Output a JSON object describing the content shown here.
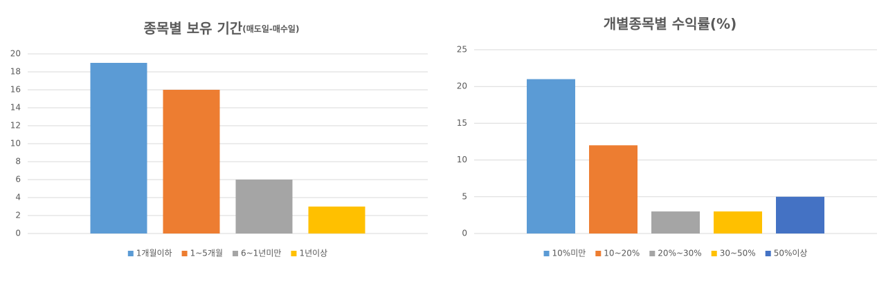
{
  "chart_data": [
    {
      "type": "bar",
      "title": "종목별 보유 기간",
      "subtitle": "(매도일-매수일)",
      "ylim": [
        0,
        20
      ],
      "yticks": [
        0,
        2,
        4,
        6,
        8,
        10,
        12,
        14,
        16,
        18,
        20
      ],
      "grid": true,
      "series": [
        {
          "name": "1개월이하",
          "color": "#5b9bd5",
          "values": [
            19
          ]
        },
        {
          "name": "1~5개월",
          "color": "#ed7d31",
          "values": [
            16
          ]
        },
        {
          "name": "6~1년미만",
          "color": "#a5a5a5",
          "values": [
            6
          ]
        },
        {
          "name": "1년이상",
          "color": "#ffc000",
          "values": [
            3
          ]
        }
      ]
    },
    {
      "type": "bar",
      "title": "개별종목별 수익률(%)",
      "ylim": [
        0,
        25
      ],
      "yticks": [
        0,
        5,
        10,
        15,
        20,
        25
      ],
      "grid": true,
      "series": [
        {
          "name": "10%미만",
          "color": "#5b9bd5",
          "values": [
            21
          ]
        },
        {
          "name": "10~20%",
          "color": "#ed7d31",
          "values": [
            12
          ]
        },
        {
          "name": "20%~30%",
          "color": "#a5a5a5",
          "values": [
            3
          ]
        },
        {
          "name": "30~50%",
          "color": "#ffc000",
          "values": [
            3
          ]
        },
        {
          "name": "50%이상",
          "color": "#4472c4",
          "values": [
            5
          ]
        }
      ]
    }
  ]
}
